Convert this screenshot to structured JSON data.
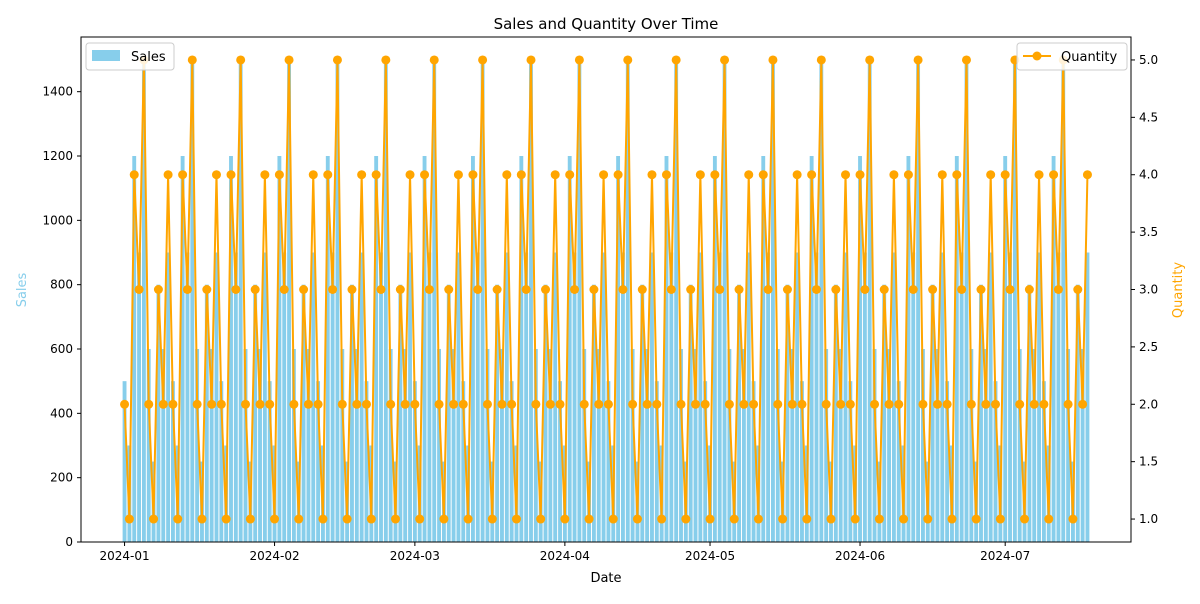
{
  "chart_data": {
    "type": "bar+line",
    "title": "Sales and Quantity Over Time",
    "xlabel": "Date",
    "ylabel_left": "Sales",
    "ylabel_right": "Quantity",
    "x_start": "2024-01-01",
    "x_end": "2024-07-18",
    "xlim": [
      "2023-12-23",
      "2024-07-27"
    ],
    "ylim_left": [
      0,
      1570
    ],
    "ylim_right": [
      0.8,
      5.2
    ],
    "x_ticks": [
      "2024-01",
      "2024-02",
      "2024-03",
      "2024-04",
      "2024-05",
      "2024-06",
      "2024-07"
    ],
    "x_tick_dates": [
      "2024-01-01",
      "2024-02-01",
      "2024-03-01",
      "2024-04-01",
      "2024-05-01",
      "2024-06-01",
      "2024-07-01"
    ],
    "y_ticks_left": [
      0,
      200,
      400,
      600,
      800,
      1000,
      1200,
      1400
    ],
    "y_ticks_right": [
      1.0,
      1.5,
      2.0,
      2.5,
      3.0,
      3.5,
      4.0,
      4.5,
      5.0
    ],
    "y_tick_labels_right": [
      "1.0",
      "1.5",
      "2.0",
      "2.5",
      "3.0",
      "3.5",
      "4.0",
      "4.5",
      "5.0"
    ],
    "sales_pattern": [
      500,
      300,
      1200,
      900,
      1500,
      600,
      250,
      800,
      600,
      900
    ],
    "quantity_pattern": [
      2,
      1,
      4,
      3,
      5,
      2,
      1,
      3,
      2,
      4
    ],
    "series": [
      {
        "name": "Sales",
        "type": "bar",
        "color": "#87ceeb"
      },
      {
        "name": "Quantity",
        "type": "line",
        "color": "#ffa500",
        "marker": "circle"
      }
    ],
    "legend": {
      "sales_position": "top-left",
      "quantity_position": "top-right"
    },
    "grid": false
  }
}
